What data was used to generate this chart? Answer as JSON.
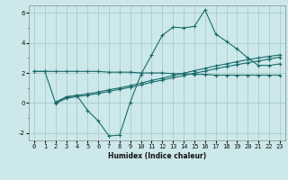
{
  "title": "",
  "xlabel": "Humidex (Indice chaleur)",
  "bg_color": "#cce8ea",
  "grid_color": "#aacccc",
  "line_color": "#1a6b6b",
  "ylim": [
    -2.5,
    6.5
  ],
  "xlim": [
    -0.5,
    23.5
  ],
  "line1_x": [
    0,
    1,
    2,
    3,
    4,
    5,
    6,
    7,
    8,
    9,
    10,
    11,
    12,
    13,
    14,
    15,
    16,
    17,
    18,
    19,
    20,
    21,
    22,
    23
  ],
  "line1_y": [
    2.1,
    2.1,
    2.1,
    2.1,
    2.1,
    2.1,
    2.1,
    2.05,
    2.05,
    2.05,
    2.0,
    2.0,
    2.0,
    1.95,
    1.95,
    1.9,
    1.9,
    1.85,
    1.85,
    1.85,
    1.85,
    1.85,
    1.85,
    1.85
  ],
  "line2_x": [
    2,
    3,
    4,
    5,
    6,
    7,
    8,
    9,
    10,
    11,
    12,
    13,
    14,
    15,
    16,
    17,
    18,
    19,
    20,
    21,
    22,
    23
  ],
  "line2_y": [
    0.05,
    0.4,
    0.5,
    0.6,
    0.72,
    0.88,
    1.0,
    1.15,
    1.32,
    1.5,
    1.65,
    1.82,
    1.98,
    2.15,
    2.3,
    2.47,
    2.6,
    2.75,
    2.88,
    3.0,
    3.1,
    3.2
  ],
  "line3_x": [
    2,
    3,
    4,
    5,
    6,
    7,
    8,
    9,
    10,
    11,
    12,
    13,
    14,
    15,
    16,
    17,
    18,
    19,
    20,
    21,
    22,
    23
  ],
  "line3_y": [
    -0.05,
    0.3,
    0.42,
    0.52,
    0.62,
    0.77,
    0.9,
    1.05,
    1.2,
    1.38,
    1.52,
    1.68,
    1.82,
    1.98,
    2.12,
    2.28,
    2.42,
    2.55,
    2.68,
    2.8,
    2.92,
    3.05
  ],
  "line4_x": [
    0,
    1,
    2,
    3,
    4,
    5,
    6,
    7,
    8,
    9,
    10,
    11,
    12,
    13,
    14,
    15,
    16,
    17,
    18,
    19,
    20,
    21,
    22,
    23
  ],
  "line4_y": [
    2.1,
    2.1,
    0.0,
    0.4,
    0.5,
    -0.5,
    -1.2,
    -2.2,
    -2.15,
    0.05,
    1.9,
    3.2,
    4.5,
    5.05,
    5.0,
    5.1,
    6.2,
    4.6,
    4.1,
    3.6,
    3.0,
    2.5,
    2.5,
    2.6
  ]
}
